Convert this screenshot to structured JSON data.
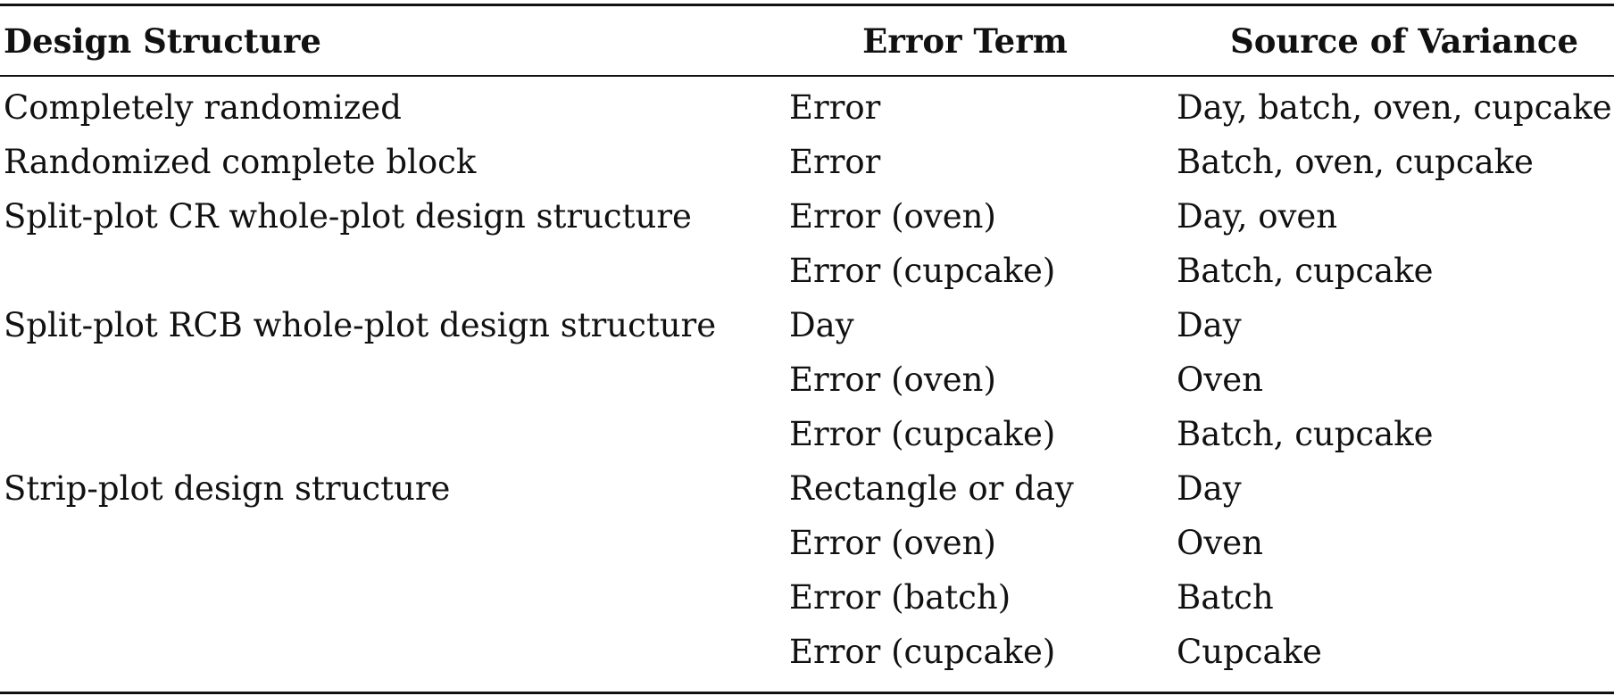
{
  "table": {
    "headers": [
      "Design Structure",
      "Error Term",
      "Source of Variance"
    ],
    "rows": [
      [
        "Completely randomized",
        "Error",
        "Day, batch, oven, cupcake"
      ],
      [
        "Randomized complete block",
        "Error",
        "Batch, oven, cupcake"
      ],
      [
        "Split-plot CR whole-plot design structure",
        "Error (oven)",
        "Day, oven"
      ],
      [
        "",
        "Error (cupcake)",
        "Batch, cupcake"
      ],
      [
        "Split-plot RCB whole-plot design structure",
        "Day",
        "Day"
      ],
      [
        "",
        "Error (oven)",
        "Oven"
      ],
      [
        "",
        "Error (cupcake)",
        "Batch, cupcake"
      ],
      [
        "Strip-plot design structure",
        "Rectangle or day",
        "Day"
      ],
      [
        "",
        "Error (oven)",
        "Oven"
      ],
      [
        "",
        "Error (batch)",
        "Batch"
      ],
      [
        "",
        "Error (cupcake)",
        "Cupcake"
      ]
    ]
  }
}
